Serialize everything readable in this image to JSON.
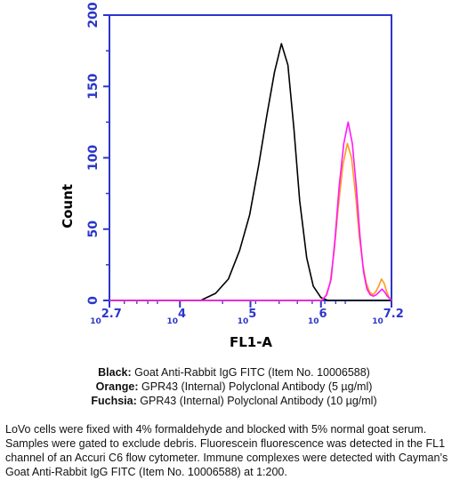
{
  "chart_data": {
    "type": "line",
    "title": "",
    "xlabel": "FL1-A",
    "ylabel": "Count",
    "x_scale": "log",
    "xlim": [
      500,
      15850
    ],
    "ylim": [
      0,
      200
    ],
    "x_tick_labels": [
      {
        "base": "10",
        "exp": "2.7"
      },
      {
        "base": "10",
        "exp": "4"
      },
      {
        "base": "10",
        "exp": "5"
      },
      {
        "base": "10",
        "exp": "6"
      },
      {
        "base": "10",
        "exp": "7.2"
      }
    ],
    "y_ticks": [
      "0",
      "50",
      "100",
      "150",
      "200"
    ],
    "series": [
      {
        "name": "Black",
        "color": "#000000",
        "x": [
          500,
          1700,
          2000,
          2300,
          2600,
          2900,
          3200,
          3500,
          3800,
          4100,
          4400,
          4700,
          5000,
          5400,
          5800,
          6300,
          6900,
          15850
        ],
        "y": [
          0,
          0,
          5,
          15,
          35,
          60,
          95,
          130,
          160,
          180,
          165,
          120,
          70,
          30,
          10,
          2,
          0,
          0
        ]
      },
      {
        "name": "Orange",
        "color": "#ff9a1a",
        "x": [
          500,
          6300,
          6700,
          7100,
          7500,
          7900,
          8400,
          8900,
          9400,
          9900,
          10400,
          10900,
          11400,
          11900,
          12400,
          12900,
          13400,
          13900,
          14400,
          14900,
          15400,
          15850
        ],
        "y": [
          0,
          0,
          3,
          12,
          35,
          65,
          95,
          110,
          100,
          75,
          45,
          25,
          12,
          6,
          4,
          6,
          10,
          15,
          12,
          6,
          2,
          0
        ]
      },
      {
        "name": "Fuchsia",
        "color": "#ff18ff",
        "x": [
          500,
          6400,
          6800,
          7200,
          7600,
          8000,
          8500,
          9000,
          9500,
          10000,
          10500,
          11000,
          11500,
          12000,
          12500,
          13000,
          13500,
          14000,
          14500,
          15000,
          15850
        ],
        "y": [
          0,
          0,
          4,
          15,
          45,
          80,
          110,
          125,
          110,
          80,
          45,
          20,
          8,
          4,
          3,
          4,
          6,
          8,
          6,
          3,
          0
        ]
      }
    ]
  },
  "legend": [
    {
      "name": "Black:",
      "text": " Goat Anti-Rabbit IgG FITC (Item No. 10006588)"
    },
    {
      "name": "Orange:",
      "text": " GPR43 (Internal) Polyclonal Antibody (5 µg/ml)"
    },
    {
      "name": "Fuchsia:",
      "text": " GPR43 (Internal) Polyclonal Antibody (10 µg/ml)"
    }
  ],
  "caption": "LoVo cells were fixed with 4% formaldehyde and blocked with 5% normal goat serum. Samples were gated to exclude debris. Fluorescein fluorescence was detected in the FL1 channel of an Accuri C6 flow cytometer. Immune complexes were detected with Cayman’s Goat Anti-Rabbit IgG FITC (Item No. 10006588) at 1:200."
}
